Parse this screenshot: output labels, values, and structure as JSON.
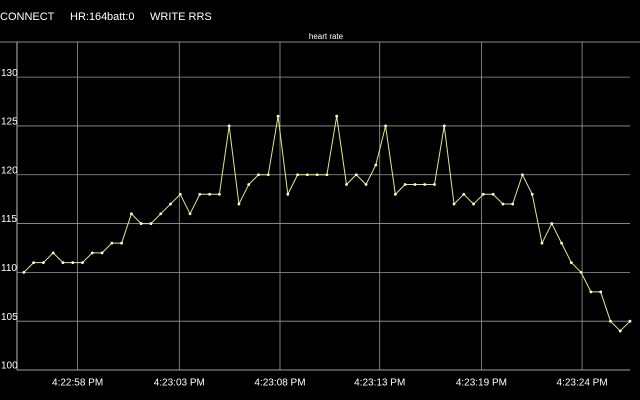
{
  "toolbar": [
    "CONNECT",
    "HR:164",
    "batt:0",
    "WRITE RRS"
  ],
  "chart_data": {
    "type": "line",
    "title": "heart rate",
    "color": "#e6e68a",
    "grid": true,
    "values": [
      110,
      111,
      111,
      112,
      111,
      111,
      111,
      112,
      112,
      113,
      113,
      116,
      115,
      115,
      116,
      117,
      118,
      116,
      118,
      118,
      118,
      125,
      117,
      119,
      120,
      120,
      126,
      118,
      120,
      120,
      120,
      120,
      126,
      119,
      120,
      119,
      121,
      125,
      118,
      119,
      119,
      119,
      119,
      125,
      117,
      118,
      117,
      118,
      118,
      117,
      117,
      120,
      118,
      113,
      115,
      113,
      111,
      110,
      108,
      108,
      105,
      104,
      105
    ],
    "xlim": [
      -0.7,
      62
    ],
    "xticks": [
      {
        "value": 5.5,
        "label": "4:22:58 PM"
      },
      {
        "value": 15.9,
        "label": "4:23:03 PM"
      },
      {
        "value": 26.2,
        "label": "4:23:08 PM"
      },
      {
        "value": 36.4,
        "label": "4:23:13 PM"
      },
      {
        "value": 46.8,
        "label": "4:23:19 PM"
      },
      {
        "value": 57.1,
        "label": "4:23:24 PM"
      }
    ],
    "ylim": [
      100,
      133.6
    ],
    "yticks": [
      100,
      105,
      110,
      115,
      120,
      125,
      130
    ]
  }
}
